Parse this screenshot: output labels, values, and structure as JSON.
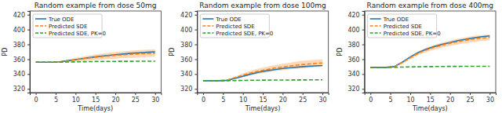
{
  "chart_data": [
    {
      "type": "line",
      "title": "Random example from dose 50mg",
      "x_label": "Time(days)",
      "y_label": "PD",
      "x": [
        0,
        2,
        4,
        6,
        8,
        10,
        12,
        14,
        16,
        18,
        20,
        22,
        24,
        26,
        28,
        30
      ],
      "xlim": [
        -1.5,
        31.5
      ],
      "ylim": [
        315,
        425
      ],
      "xticks": [
        0,
        5,
        10,
        15,
        20,
        25,
        30
      ],
      "yticks": [
        320,
        340,
        360,
        380,
        400,
        420
      ],
      "grid": false,
      "legend": "upper-left",
      "series": [
        {
          "name": "True ODE",
          "color": "#1f77b4",
          "line_style": "solid",
          "values": [
            356,
            356,
            356,
            356.5,
            358,
            359.5,
            361,
            362.5,
            364,
            365,
            366,
            367,
            368,
            368.7,
            369.3,
            370
          ]
        },
        {
          "name": "Predicted SDE",
          "color": "#ff7f0e",
          "line_style": "dashed",
          "values": [
            356,
            356,
            356,
            356.5,
            357.8,
            359.3,
            360.7,
            362,
            363.2,
            364.3,
            365.2,
            366,
            366.7,
            367.3,
            367.8,
            368.3
          ],
          "lower": [
            356,
            356,
            356,
            356,
            356.3,
            356.8,
            357.7,
            358.5,
            359.2,
            360.3,
            360.7,
            361.5,
            361.7,
            362.3,
            362.8,
            363.3
          ],
          "upper": [
            356,
            356,
            356,
            357,
            359.3,
            361.8,
            363.7,
            365.5,
            367.2,
            368.3,
            369.7,
            370.5,
            371.7,
            372.3,
            372.8,
            373.3
          ]
        },
        {
          "name": "Predicted SDE, PK=0",
          "color": "#2ca02c",
          "line_style": "dashed",
          "values": [
            356,
            356,
            356,
            356,
            356.2,
            356.4,
            356.6,
            356.8,
            357,
            357,
            357.1,
            357.2,
            357.2,
            357.3,
            357.3,
            357.4
          ]
        }
      ]
    },
    {
      "type": "line",
      "title": "Random example from dose 100mg",
      "x_label": "Time(days)",
      "y_label": "PD",
      "x": [
        0,
        2,
        4,
        6,
        8,
        10,
        12,
        14,
        16,
        18,
        20,
        22,
        24,
        26,
        28,
        30
      ],
      "xlim": [
        -1.5,
        31.5
      ],
      "ylim": [
        315,
        425
      ],
      "xticks": [
        0,
        5,
        10,
        15,
        20,
        25,
        30
      ],
      "yticks": [
        320,
        340,
        360,
        380,
        400,
        420
      ],
      "grid": false,
      "legend": "upper-left",
      "series": [
        {
          "name": "True ODE",
          "color": "#1f77b4",
          "line_style": "solid",
          "values": [
            331,
            331,
            331,
            331.5,
            334,
            337,
            340,
            342.5,
            344.5,
            346,
            347.5,
            348.5,
            349.5,
            350.3,
            351,
            351.5
          ]
        },
        {
          "name": "Predicted SDE",
          "color": "#ff7f0e",
          "line_style": "dashed",
          "values": [
            331,
            331,
            331,
            332,
            335,
            338.5,
            341.5,
            344,
            346,
            348,
            349.5,
            351,
            352.3,
            353.3,
            354.2,
            355
          ],
          "lower": [
            331,
            331,
            331,
            331.5,
            333.5,
            336,
            338.5,
            340.5,
            342,
            344,
            345,
            346.5,
            347.3,
            348.3,
            349.2,
            350
          ],
          "upper": [
            331,
            331,
            331,
            332.5,
            336.5,
            341,
            344.5,
            347.5,
            350,
            352,
            354,
            355.5,
            357.3,
            358.3,
            359.2,
            360
          ]
        },
        {
          "name": "Predicted SDE, PK=0",
          "color": "#2ca02c",
          "line_style": "dashed",
          "values": [
            331,
            331,
            331,
            331,
            331.2,
            331.4,
            331.6,
            331.7,
            331.8,
            331.9,
            332,
            332,
            332.1,
            332.1,
            332.2,
            332.2
          ]
        }
      ]
    },
    {
      "type": "line",
      "title": "Random example from dose 400mg",
      "x_label": "Time(days)",
      "y_label": "PD",
      "x": [
        0,
        2,
        4,
        6,
        8,
        10,
        12,
        14,
        16,
        18,
        20,
        22,
        24,
        26,
        28,
        30
      ],
      "xlim": [
        -1.5,
        31.5
      ],
      "ylim": [
        315,
        425
      ],
      "xticks": [
        0,
        5,
        10,
        15,
        20,
        25,
        30
      ],
      "yticks": [
        320,
        340,
        360,
        380,
        400,
        420
      ],
      "grid": false,
      "legend": "upper-left",
      "series": [
        {
          "name": "True ODE",
          "color": "#1f77b4",
          "line_style": "solid",
          "values": [
            349,
            349,
            349,
            350,
            356,
            363,
            369,
            373.5,
            377,
            380,
            382.5,
            385,
            387,
            388.7,
            390.3,
            391.5
          ]
        },
        {
          "name": "Predicted SDE",
          "color": "#ff7f0e",
          "line_style": "dashed",
          "values": [
            349,
            349,
            349,
            350,
            355.5,
            362,
            368,
            372.5,
            376,
            379,
            381.5,
            383.7,
            385.7,
            387.3,
            388.5,
            389.5
          ],
          "lower": [
            349,
            349,
            349,
            349.5,
            354,
            360,
            365.5,
            369.5,
            373,
            375.5,
            378,
            379.7,
            381.7,
            383.3,
            384.5,
            385.5
          ],
          "upper": [
            349,
            349,
            349,
            350.5,
            357,
            364,
            370.5,
            375.5,
            379,
            382.5,
            385,
            387.7,
            389.7,
            391.3,
            392.5,
            393.5
          ]
        },
        {
          "name": "Predicted SDE, PK=0",
          "color": "#2ca02c",
          "line_style": "dashed",
          "values": [
            349,
            349,
            349,
            349.2,
            349.4,
            349.6,
            349.8,
            350,
            350.1,
            350.2,
            350.3,
            350.3,
            350.4,
            350.4,
            350.5,
            350.5
          ]
        }
      ]
    }
  ]
}
